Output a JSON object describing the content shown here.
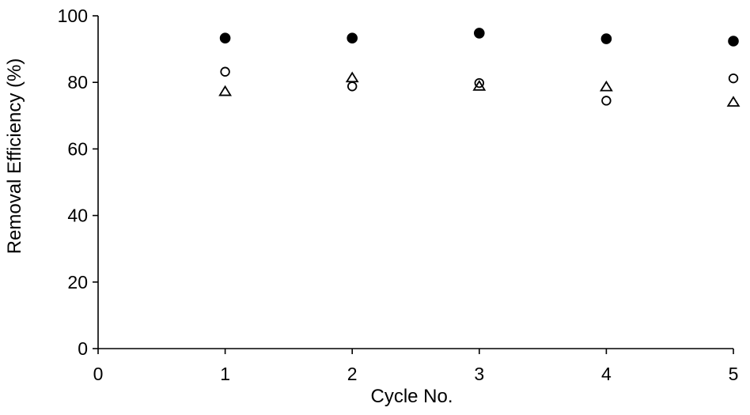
{
  "chart_data": {
    "type": "scatter",
    "title": "",
    "xlabel": "Cycle No.",
    "ylabel": "Removal Efficiency (%)",
    "xlim": [
      0,
      5
    ],
    "ylim": [
      0,
      100
    ],
    "xticks": [
      "0",
      "1",
      "2",
      "3",
      "4",
      "5"
    ],
    "yticks": [
      "0",
      "20",
      "40",
      "60",
      "80",
      "100"
    ],
    "grid": false,
    "legend": "none",
    "x": [
      1,
      2,
      3,
      4,
      5
    ],
    "series": [
      {
        "marker": "filled-circle",
        "color": "#000000",
        "values": [
          93.3,
          93.3,
          94.8,
          93.1,
          92.4
        ]
      },
      {
        "marker": "open-circle",
        "color": "#000000",
        "values": [
          83.2,
          78.8,
          79.8,
          74.5,
          81.2
        ]
      },
      {
        "marker": "open-triangle",
        "color": "#000000",
        "values": [
          77.2,
          81.3,
          78.8,
          78.6,
          74.0
        ]
      }
    ]
  }
}
